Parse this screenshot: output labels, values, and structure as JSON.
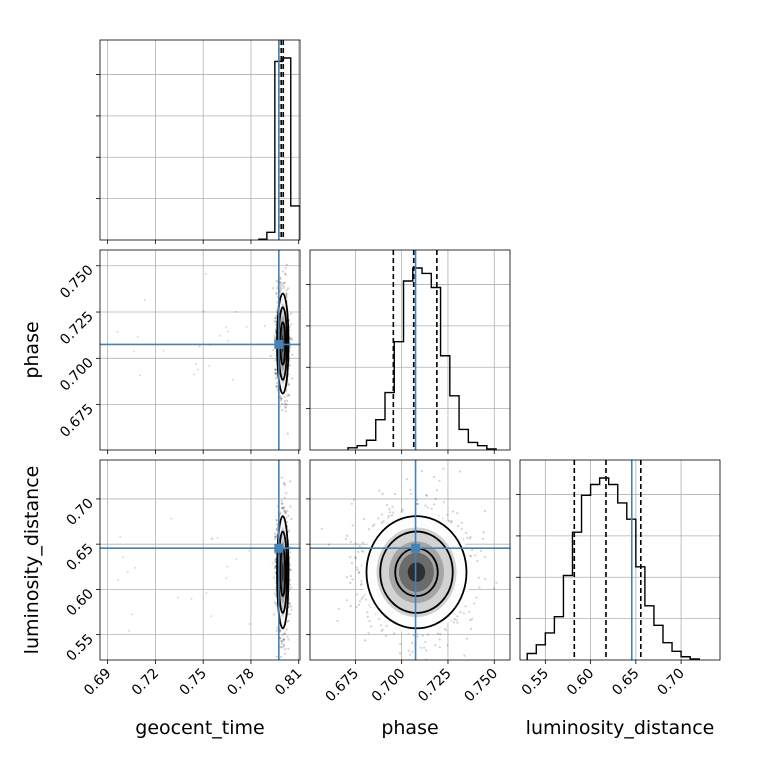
{
  "chart_data": {
    "type": "corner",
    "parameters": [
      "geocent_time",
      "phase",
      "luminosity_distance"
    ],
    "truths": {
      "geocent_time": 0.7975,
      "phase": 0.7075,
      "luminosity_distance": 0.6455
    },
    "quantiles": {
      "geocent_time": [
        0.7975,
        0.799,
        0.8003
      ],
      "phase": [
        0.6955,
        0.7065,
        0.719
      ],
      "luminosity_distance": [
        0.582,
        0.617,
        0.6555
      ]
    },
    "ranges": {
      "geocent_time": [
        0.6852,
        0.8108
      ],
      "phase": [
        0.6505,
        0.7585
      ],
      "luminosity_distance": [
        0.522,
        0.743
      ]
    },
    "ticks": {
      "geocent_time": [
        {
          "v": 0.69,
          "label": "0.69"
        },
        {
          "v": 0.72,
          "label": "0.72"
        },
        {
          "v": 0.75,
          "label": "0.75"
        },
        {
          "v": 0.78,
          "label": "0.78"
        },
        {
          "v": 0.81,
          "label": "0.81"
        }
      ],
      "phase": [
        {
          "v": 0.675,
          "label": "0.675"
        },
        {
          "v": 0.7,
          "label": "0.700"
        },
        {
          "v": 0.725,
          "label": "0.725"
        },
        {
          "v": 0.75,
          "label": "0.750"
        }
      ],
      "luminosity_distance": [
        {
          "v": 0.55,
          "label": "0.55"
        },
        {
          "v": 0.6,
          "label": "0.60"
        },
        {
          "v": 0.65,
          "label": "0.65"
        },
        {
          "v": 0.7,
          "label": "0.70"
        }
      ]
    },
    "marginals": {
      "geocent_time": {
        "edges": [
          0.785,
          0.79,
          0.795,
          0.8,
          0.805,
          0.8108
        ],
        "counts": [
          1,
          9,
          210,
          214,
          40
        ]
      },
      "phase": {
        "edges": [
          0.671,
          0.676,
          0.681,
          0.686,
          0.691,
          0.696,
          0.701,
          0.706,
          0.711,
          0.716,
          0.721,
          0.726,
          0.731,
          0.736,
          0.741,
          0.746,
          0.751
        ],
        "counts": [
          2,
          4,
          9,
          28,
          53,
          100,
          156,
          168,
          163,
          150,
          87,
          50,
          19,
          7,
          4,
          1
        ]
      },
      "luminosity_distance": {
        "edges": [
          0.53,
          0.54,
          0.55,
          0.56,
          0.57,
          0.58,
          0.59,
          0.6,
          0.61,
          0.62,
          0.63,
          0.64,
          0.65,
          0.66,
          0.67,
          0.68,
          0.69,
          0.7,
          0.71,
          0.72
        ],
        "counts": [
          6,
          14,
          25,
          40,
          78,
          118,
          152,
          162,
          168,
          162,
          145,
          130,
          86,
          50,
          32,
          16,
          8,
          3,
          1
        ]
      }
    },
    "grid": true
  }
}
